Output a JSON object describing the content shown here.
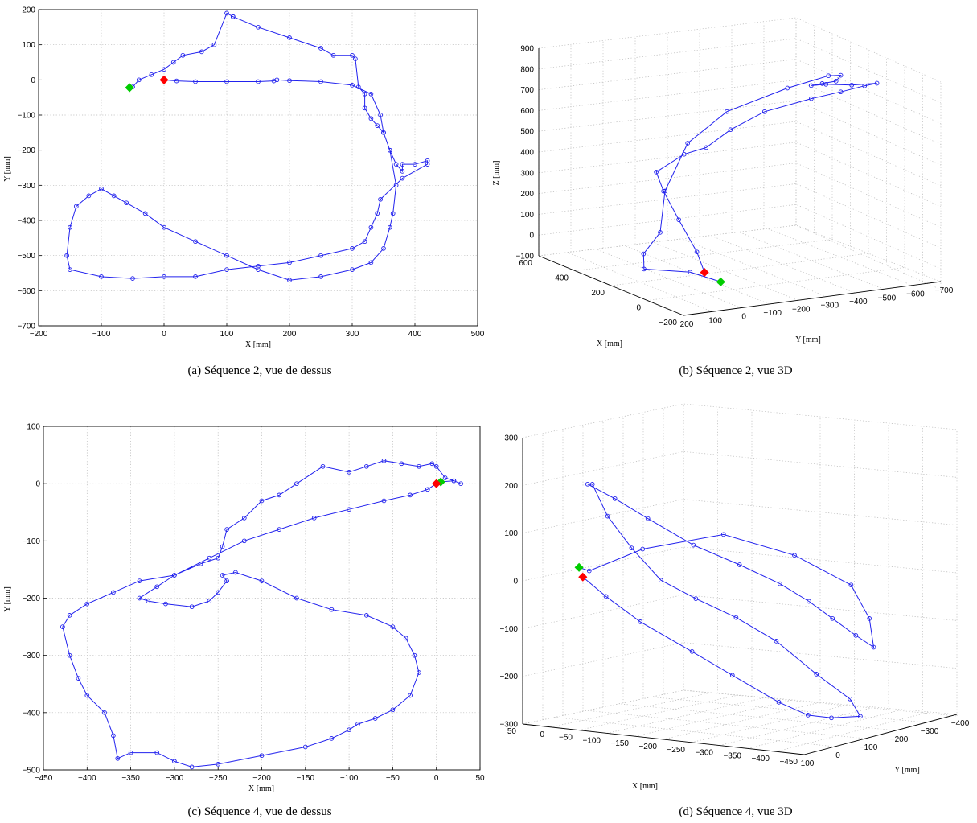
{
  "panels": [
    {
      "caption": "(a)  Séquence 2, vue de dessus",
      "xlabel": "X [mm]",
      "ylabel": "Y [mm]",
      "xticks": [
        "−200",
        "−100",
        "0",
        "100",
        "200",
        "300",
        "400",
        "500"
      ],
      "yticks": [
        "200",
        "100",
        "0",
        "−100",
        "−200",
        "−300",
        "−400",
        "−500",
        "−600",
        "−700"
      ]
    },
    {
      "caption": "(b)  Séquence 2, vue 3D",
      "xlabel": "X [mm]",
      "ylabel": "Y [mm]",
      "zlabel": "Z [mm]",
      "xticks": [
        "600",
        "400",
        "200",
        "0",
        "−200"
      ],
      "yticks": [
        "200",
        "100",
        "0",
        "−100",
        "−200",
        "−300",
        "−400",
        "−500",
        "−600",
        "−700"
      ],
      "zticks": [
        "900",
        "800",
        "700",
        "600",
        "500",
        "400",
        "300",
        "200",
        "100",
        "0",
        "−100"
      ]
    },
    {
      "caption": "(c)  Séquence 4, vue de dessus",
      "xlabel": "X [mm]",
      "ylabel": "Y [mm]",
      "xticks": [
        "−450",
        "−400",
        "−350",
        "−300",
        "−250",
        "−200",
        "−150",
        "−100",
        "−50",
        "0",
        "50"
      ],
      "yticks": [
        "100",
        "0",
        "−100",
        "−200",
        "−300",
        "−400",
        "−500"
      ]
    },
    {
      "caption": "(d)  Séquence 4, vue 3D",
      "xlabel": "X [mm]",
      "ylabel": "Y [mm]",
      "xticks": [
        "50",
        "0",
        "−50",
        "−100",
        "−150",
        "−200",
        "−250",
        "−300",
        "−350",
        "−400",
        "−450"
      ],
      "yticks": [
        "100",
        "0",
        "−100",
        "−200",
        "−300",
        "−400"
      ],
      "zticks": [
        "300",
        "200",
        "100",
        "0",
        "−100",
        "−200",
        "−300"
      ]
    }
  ],
  "chart_data": [
    {
      "type": "line",
      "view": "top",
      "xlabel": "X [mm]",
      "ylabel": "Y [mm]",
      "xlim": [
        -200,
        500
      ],
      "ylim": [
        -700,
        200
      ],
      "grid": true,
      "series_color": "#2222ee",
      "start_marker": {
        "x": 0,
        "y": 0,
        "color": "#ff0000",
        "shape": "diamond"
      },
      "end_marker": {
        "x": -55,
        "y": -22,
        "color": "#00cc00",
        "shape": "diamond"
      },
      "x": [
        0,
        20,
        50,
        100,
        150,
        175,
        180,
        200,
        250,
        300,
        330,
        345,
        350,
        360,
        370,
        380,
        380,
        400,
        420,
        420,
        380,
        345,
        340,
        330,
        320,
        300,
        250,
        200,
        150,
        100,
        50,
        0,
        -50,
        -100,
        -150,
        -155,
        -150,
        -140,
        -120,
        -100,
        -80,
        -60,
        -30,
        0,
        50,
        100,
        150,
        200,
        250,
        300,
        330,
        350,
        360,
        365,
        370,
        360,
        350,
        340,
        330,
        320,
        320,
        310,
        305,
        300,
        270,
        250,
        200,
        150,
        110,
        110,
        100,
        80,
        60,
        30,
        15,
        0,
        -20,
        -40,
        -50,
        -55
      ],
      "y": [
        0,
        -3,
        -5,
        -5,
        -5,
        -3,
        0,
        -2,
        -5,
        -15,
        -40,
        -100,
        -150,
        -200,
        -240,
        -260,
        -240,
        -240,
        -230,
        -240,
        -280,
        -340,
        -380,
        -420,
        -460,
        -480,
        -500,
        -520,
        -530,
        -540,
        -560,
        -560,
        -565,
        -560,
        -540,
        -500,
        -420,
        -360,
        -330,
        -310,
        -330,
        -350,
        -380,
        -420,
        -460,
        -500,
        -540,
        -570,
        -560,
        -540,
        -520,
        -480,
        -420,
        -380,
        -300,
        -200,
        -150,
        -130,
        -110,
        -80,
        -40,
        -20,
        60,
        70,
        70,
        90,
        120,
        150,
        180,
        180,
        190,
        100,
        80,
        70,
        50,
        30,
        15,
        0,
        -20,
        -22
      ]
    },
    {
      "type": "line",
      "view": "3d",
      "xlabel": "X [mm]",
      "ylabel": "Y [mm]",
      "zlabel": "Z [mm]",
      "xlim": [
        -200,
        600
      ],
      "ylim": [
        -700,
        200
      ],
      "zlim": [
        -100,
        900
      ],
      "grid": true,
      "series_color": "#2222ee",
      "start_marker": {
        "x": 0,
        "y": 0,
        "z": 0,
        "color": "#ff0000",
        "shape": "diamond"
      },
      "end_marker": {
        "x": -55,
        "y": -22,
        "z": -30,
        "color": "#00cc00",
        "shape": "diamond"
      },
      "x": [
        0,
        50,
        150,
        250,
        330,
        350,
        370,
        330,
        300,
        200,
        100,
        0,
        -100,
        -150,
        -150,
        -100,
        -50,
        0,
        100,
        200,
        300,
        350,
        330,
        250,
        150,
        100,
        50,
        0,
        -55
      ],
      "y": [
        0,
        -5,
        -5,
        -15,
        -40,
        -150,
        -240,
        -300,
        -400,
        -500,
        -540,
        -560,
        -540,
        -420,
        -330,
        -310,
        -380,
        -460,
        -540,
        -560,
        -480,
        -300,
        -150,
        -20,
        60,
        150,
        180,
        50,
        -22
      ],
      "z": [
        0,
        80,
        200,
        300,
        360,
        420,
        430,
        520,
        600,
        680,
        740,
        800,
        850,
        880,
        900,
        880,
        860,
        840,
        820,
        780,
        700,
        600,
        480,
        300,
        150,
        80,
        30,
        10,
        -30
      ]
    },
    {
      "type": "line",
      "view": "top",
      "xlabel": "X [mm]",
      "ylabel": "Y [mm]",
      "xlim": [
        -450,
        50
      ],
      "ylim": [
        -500,
        100
      ],
      "grid": true,
      "series_color": "#2222ee",
      "start_marker": {
        "x": 0,
        "y": 0,
        "color": "#ff0000",
        "shape": "diamond"
      },
      "end_marker": {
        "x": 5,
        "y": 3,
        "color": "#00cc00",
        "shape": "diamond"
      },
      "x": [
        0,
        -10,
        -30,
        -60,
        -100,
        -140,
        -180,
        -220,
        -260,
        -300,
        -320,
        -340,
        -330,
        -310,
        -280,
        -260,
        -250,
        -240,
        -245,
        -230,
        -200,
        -160,
        -120,
        -80,
        -50,
        -35,
        -25,
        -20,
        -30,
        -50,
        -70,
        -90,
        -100,
        -120,
        -150,
        -200,
        -250,
        -280,
        -300,
        -320,
        -350,
        -365,
        -370,
        -380,
        -400,
        -410,
        -420,
        -428,
        -420,
        -400,
        -370,
        -340,
        -300,
        -270,
        -250,
        -245,
        -240,
        -220,
        -200,
        -180,
        -160,
        -130,
        -100,
        -80,
        -60,
        -40,
        -20,
        -5,
        0,
        10,
        20,
        28,
        20,
        5
      ],
      "y": [
        0,
        -10,
        -20,
        -30,
        -45,
        -60,
        -80,
        -100,
        -130,
        -160,
        -180,
        -200,
        -205,
        -210,
        -215,
        -205,
        -190,
        -170,
        -160,
        -155,
        -170,
        -200,
        -220,
        -230,
        -250,
        -270,
        -300,
        -330,
        -370,
        -395,
        -410,
        -420,
        -430,
        -445,
        -460,
        -475,
        -490,
        -495,
        -485,
        -470,
        -470,
        -480,
        -440,
        -400,
        -370,
        -340,
        -300,
        -250,
        -230,
        -210,
        -190,
        -170,
        -160,
        -140,
        -130,
        -110,
        -80,
        -60,
        -30,
        -20,
        0,
        30,
        20,
        30,
        40,
        35,
        30,
        35,
        30,
        10,
        5,
        0,
        5,
        3
      ]
    },
    {
      "type": "line",
      "view": "3d",
      "xlabel": "X [mm]",
      "ylabel": "Y [mm]",
      "xlim": [
        -450,
        50
      ],
      "ylim": [
        -400,
        100
      ],
      "zlim": [
        -300,
        300
      ],
      "grid": true,
      "series_color": "#2222ee",
      "start_marker": {
        "x": 0,
        "y": 0,
        "z": 0,
        "color": "#ff0000",
        "shape": "diamond"
      },
      "end_marker": {
        "x": 5,
        "y": 3,
        "z": 20,
        "color": "#00cc00",
        "shape": "diamond"
      },
      "x": [
        0,
        -30,
        -80,
        -150,
        -200,
        -250,
        -280,
        -300,
        -330,
        -300,
        -250,
        -200,
        -150,
        -100,
        -60,
        -30,
        -10,
        0,
        -20,
        -80,
        -150,
        -220,
        -280,
        -330,
        -360,
        -380,
        -400,
        -410,
        -380,
        -330,
        -250,
        -150,
        -50,
        0,
        5
      ],
      "y": [
        0,
        -20,
        -40,
        -80,
        -120,
        -180,
        -220,
        -260,
        -300,
        -320,
        -300,
        -260,
        -220,
        -180,
        -140,
        -100,
        -60,
        -30,
        20,
        40,
        60,
        40,
        0,
        -40,
        -80,
        -120,
        -160,
        -200,
        -240,
        -270,
        -230,
        -180,
        -100,
        -20,
        3
      ],
      "z": [
        0,
        -40,
        -90,
        -150,
        -200,
        -260,
        -290,
        -300,
        -300,
        -270,
        -220,
        -150,
        -100,
        -60,
        -20,
        50,
        120,
        190,
        200,
        180,
        150,
        100,
        60,
        20,
        -20,
        -60,
        -100,
        -130,
        -80,
        -20,
        40,
        80,
        50,
        10,
        20
      ]
    }
  ]
}
